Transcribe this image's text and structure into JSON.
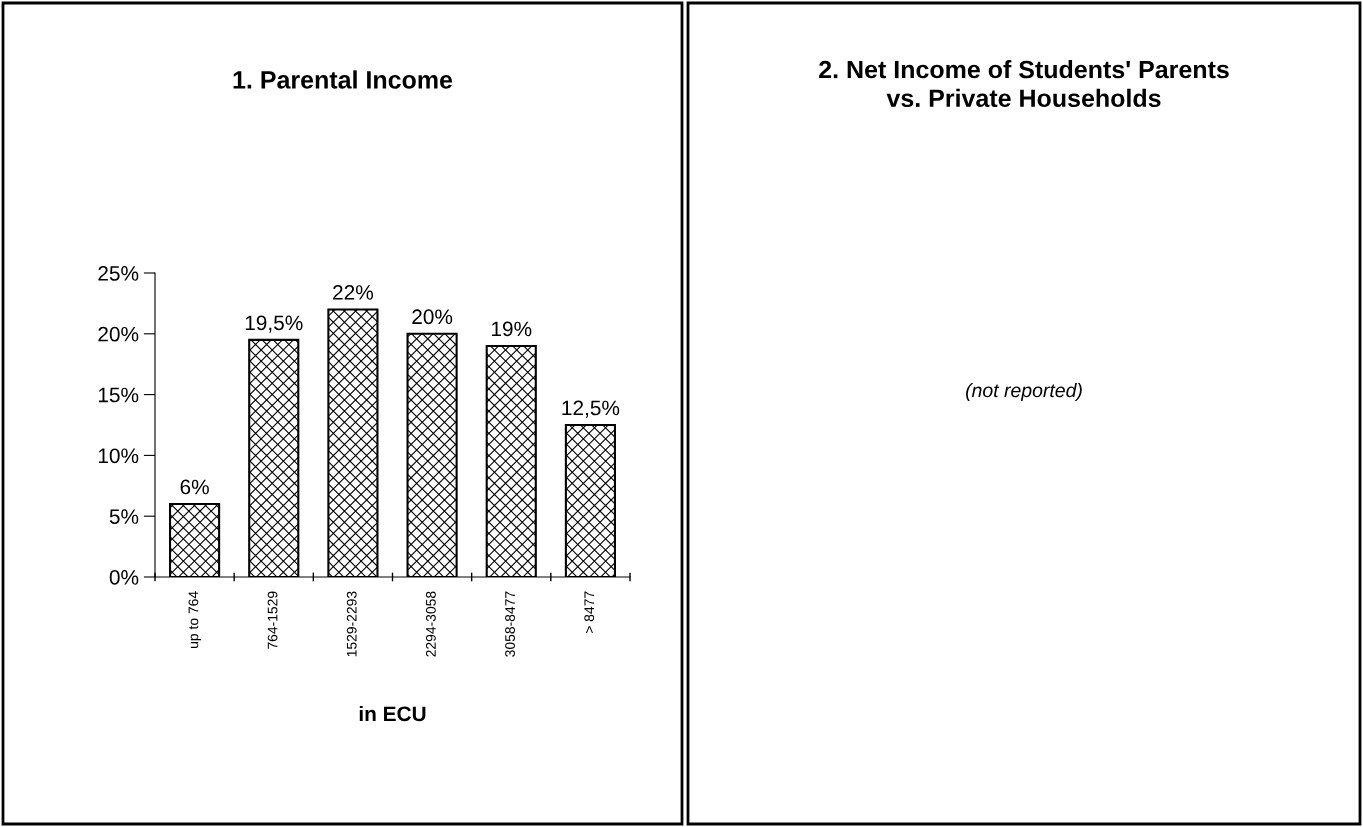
{
  "chart_data": [
    {
      "type": "bar",
      "title": "1. Parental Income",
      "xlabel": "in ECU",
      "categories": [
        "up to 764",
        "764-1529",
        "1529-2293",
        "2294-3058",
        "3058-8477",
        "> 8477"
      ],
      "values": [
        6,
        19.5,
        22,
        20,
        19,
        12.5
      ],
      "color": "#000000",
      "value_labels": [
        "6%",
        "19,5%",
        "22%",
        "20%",
        "19%",
        "12,5%"
      ],
      "ylim": [
        0,
        25
      ],
      "yticks": [
        {
          "value": 0,
          "label": "0%"
        },
        {
          "value": 5,
          "label": "5%"
        },
        {
          "value": 10,
          "label": "10%"
        },
        {
          "value": 15,
          "label": "15%"
        },
        {
          "value": 20,
          "label": "20%"
        },
        {
          "value": 25,
          "label": "25%"
        }
      ],
      "grid": false,
      "legend": false
    },
    {
      "type": "other",
      "title": "2. Net Income of Students' Parents\nvs. Private Households",
      "annotations": [
        "(not reported)"
      ]
    }
  ]
}
